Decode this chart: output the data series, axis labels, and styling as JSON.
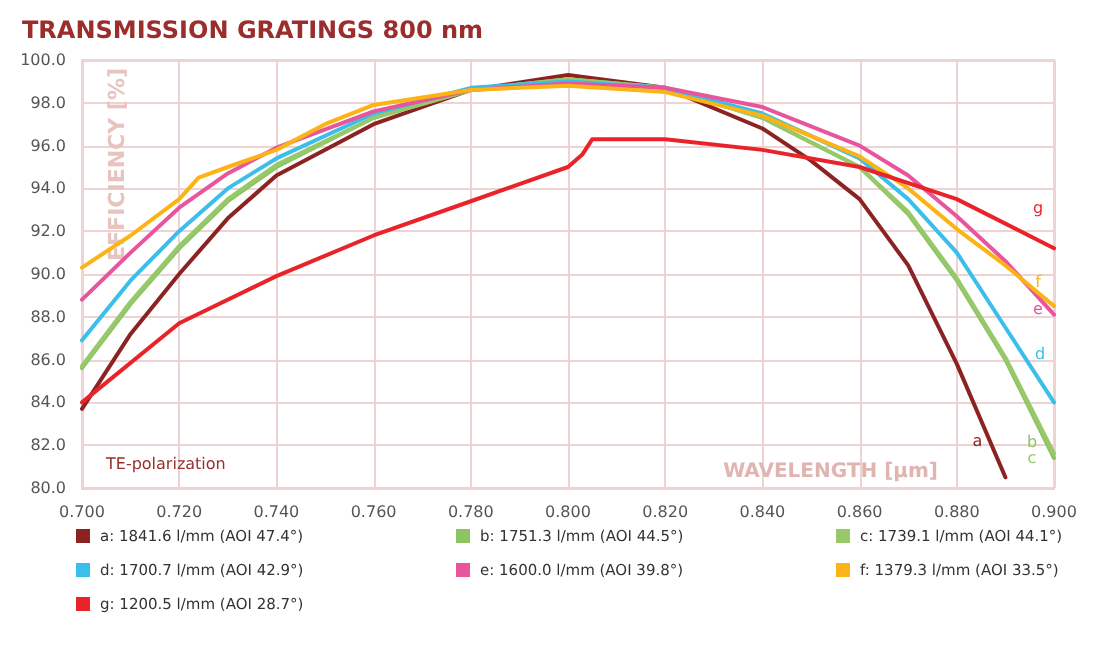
{
  "chart_data": {
    "type": "line",
    "title": "TRANSMISSION GRATINGS 800 nm",
    "xlabel": "WAVELENGTH [µm]",
    "ylabel": "EFFICIENCY [%]",
    "xlim": [
      0.7,
      0.9
    ],
    "xticks": [
      {
        "value": 0.7,
        "label": "0.700"
      },
      {
        "value": 0.72,
        "label": "0.720"
      },
      {
        "value": 0.74,
        "label": "0.740"
      },
      {
        "value": 0.76,
        "label": "0.760"
      },
      {
        "value": 0.78,
        "label": "0.780"
      },
      {
        "value": 0.8,
        "label": "0.800"
      },
      {
        "value": 0.82,
        "label": "0.820"
      },
      {
        "value": 0.84,
        "label": "0.840"
      },
      {
        "value": 0.86,
        "label": "0.860"
      },
      {
        "value": 0.88,
        "label": "0.880"
      },
      {
        "value": 0.9,
        "label": "0.900"
      }
    ],
    "ylim": [
      80,
      100
    ],
    "yticks": [
      {
        "value": 80,
        "label": "80.0"
      },
      {
        "value": 82,
        "label": "82.0"
      },
      {
        "value": 84,
        "label": "84.0"
      },
      {
        "value": 86,
        "label": "86.0"
      },
      {
        "value": 88,
        "label": "88.0"
      },
      {
        "value": 90,
        "label": "90.0"
      },
      {
        "value": 92,
        "label": "92.0"
      },
      {
        "value": 94,
        "label": "94.0"
      },
      {
        "value": 96,
        "label": "96.0"
      },
      {
        "value": 98,
        "label": "98.0"
      },
      {
        "value": 100,
        "label": "100.0"
      }
    ],
    "grid": true,
    "legend": "bottom",
    "marker": "none",
    "line_style": "solid",
    "series": [
      {
        "name": "a: 1841.6 l/mm (AOI 47.4°)",
        "color": "#8b2323",
        "x": [
          0.7,
          0.71,
          0.72,
          0.73,
          0.74,
          0.76,
          0.78,
          0.8,
          0.82,
          0.84,
          0.85,
          0.86,
          0.87,
          0.88,
          0.89
        ],
        "values": [
          83.7,
          87.2,
          90.0,
          92.6,
          94.6,
          97.0,
          98.6,
          99.3,
          98.7,
          96.8,
          95.3,
          93.5,
          90.4,
          85.8,
          80.5
        ]
      },
      {
        "name": "b: 1751.3 l/mm (AOI 44.5°)",
        "color": "#8dc363",
        "x": [
          0.7,
          0.71,
          0.72,
          0.73,
          0.74,
          0.76,
          0.78,
          0.8,
          0.82,
          0.84,
          0.86,
          0.87,
          0.88,
          0.89,
          0.9
        ],
        "values": [
          85.6,
          88.6,
          91.2,
          93.4,
          95.0,
          97.3,
          98.6,
          99.1,
          98.7,
          97.3,
          95.0,
          92.8,
          89.7,
          86.0,
          81.4
        ]
      },
      {
        "name": "c: 1739.1 l/mm (AOI 44.1°)",
        "color": "#97c96a",
        "x": [
          0.7,
          0.71,
          0.72,
          0.73,
          0.74,
          0.76,
          0.78,
          0.8,
          0.82,
          0.84,
          0.86,
          0.87,
          0.88,
          0.89,
          0.9
        ],
        "values": [
          85.7,
          88.7,
          91.3,
          93.5,
          95.1,
          97.3,
          98.6,
          99.1,
          98.7,
          97.3,
          95.0,
          92.9,
          89.8,
          86.1,
          81.6
        ]
      },
      {
        "name": "d: 1700.7 l/mm (AOI 42.9°)",
        "color": "#3bbfea",
        "x": [
          0.7,
          0.71,
          0.72,
          0.73,
          0.74,
          0.76,
          0.78,
          0.8,
          0.82,
          0.84,
          0.86,
          0.87,
          0.88,
          0.89,
          0.9
        ],
        "values": [
          86.9,
          89.7,
          92.0,
          94.0,
          95.4,
          97.5,
          98.7,
          99.0,
          98.7,
          97.5,
          95.4,
          93.5,
          91.0,
          87.5,
          84.0
        ]
      },
      {
        "name": "e: 1600.0 l/mm (AOI 39.8°)",
        "color": "#e8559d",
        "x": [
          0.7,
          0.71,
          0.72,
          0.73,
          0.74,
          0.76,
          0.78,
          0.8,
          0.82,
          0.84,
          0.86,
          0.87,
          0.88,
          0.89,
          0.9
        ],
        "values": [
          88.8,
          91.0,
          93.1,
          94.7,
          95.9,
          97.6,
          98.6,
          98.9,
          98.7,
          97.8,
          96.0,
          94.6,
          92.7,
          90.6,
          88.1
        ]
      },
      {
        "name": "f: 1379.3 l/mm (AOI 33.5°)",
        "color": "#fbb315",
        "x": [
          0.7,
          0.71,
          0.72,
          0.724,
          0.73,
          0.74,
          0.75,
          0.76,
          0.78,
          0.8,
          0.82,
          0.84,
          0.86,
          0.87,
          0.88,
          0.89,
          0.9
        ],
        "values": [
          90.3,
          91.8,
          93.5,
          94.5,
          95.0,
          95.8,
          97.0,
          97.9,
          98.6,
          98.8,
          98.5,
          97.4,
          95.5,
          94.0,
          92.1,
          90.4,
          88.5
        ]
      },
      {
        "name": "g: 1200.5 l/mm (AOI 28.7°)",
        "color": "#e8242a",
        "x": [
          0.7,
          0.72,
          0.74,
          0.76,
          0.78,
          0.79,
          0.8,
          0.803,
          0.805,
          0.82,
          0.84,
          0.86,
          0.88,
          0.9
        ],
        "values": [
          84.0,
          87.7,
          89.9,
          91.8,
          93.4,
          94.2,
          95.0,
          95.6,
          96.3,
          96.3,
          95.8,
          95.0,
          93.5,
          91.2
        ]
      }
    ],
    "annotations": [
      "TE-polarization",
      "a",
      "b",
      "c",
      "d",
      "e",
      "f",
      "g"
    ]
  }
}
